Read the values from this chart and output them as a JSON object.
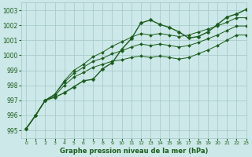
{
  "title": "Graphe pression niveau de la mer (hPa)",
  "bg_color": "#cce8e8",
  "grid_color": "#aacccc",
  "line_color": "#1a5c1a",
  "xlim": [
    -0.5,
    23
  ],
  "ylim": [
    994.5,
    1003.5
  ],
  "yticks": [
    995,
    996,
    997,
    998,
    999,
    1000,
    1001,
    1002,
    1003
  ],
  "xticks": [
    0,
    1,
    2,
    3,
    4,
    5,
    6,
    7,
    8,
    9,
    10,
    11,
    12,
    13,
    14,
    15,
    16,
    17,
    18,
    19,
    20,
    21,
    22,
    23
  ],
  "series": [
    {
      "x": [
        0,
        1,
        2,
        3,
        4,
        5,
        6,
        7,
        8,
        9,
        10,
        11,
        12,
        13,
        14,
        15,
        16,
        17,
        18,
        19,
        20,
        21,
        22,
        23
      ],
      "y": [
        995.1,
        996.0,
        997.0,
        997.2,
        997.5,
        997.9,
        998.3,
        998.4,
        999.1,
        999.5,
        1000.4,
        1001.1,
        1002.15,
        1002.35,
        1002.05,
        1001.85,
        1001.55,
        1001.15,
        1001.25,
        1001.55,
        1002.05,
        1002.55,
        1002.75,
        1003.05
      ],
      "marker": "D",
      "markersize": 2.5,
      "linewidth": 1.0,
      "zorder": 5
    },
    {
      "x": [
        0,
        1,
        2,
        3,
        4,
        5,
        6,
        7,
        8,
        9,
        10,
        11,
        12,
        13,
        14,
        15,
        16,
        17,
        18,
        19,
        20,
        21,
        22,
        23
      ],
      "y": [
        995.1,
        996.0,
        997.0,
        997.4,
        998.3,
        999.0,
        999.4,
        999.9,
        1000.2,
        1000.6,
        1000.9,
        1001.2,
        1001.45,
        1001.35,
        1001.45,
        1001.35,
        1001.25,
        1001.35,
        1001.55,
        1001.75,
        1001.95,
        1002.2,
        1002.5,
        1002.5
      ],
      "marker": "D",
      "markersize": 2.0,
      "linewidth": 0.7,
      "zorder": 4
    },
    {
      "x": [
        0,
        1,
        2,
        3,
        4,
        5,
        6,
        7,
        8,
        9,
        10,
        11,
        12,
        13,
        14,
        15,
        16,
        17,
        18,
        19,
        20,
        21,
        22,
        23
      ],
      "y": [
        995.1,
        996.0,
        997.0,
        997.4,
        998.2,
        998.8,
        999.2,
        999.6,
        999.8,
        1000.1,
        1000.3,
        1000.55,
        1000.75,
        1000.65,
        1000.75,
        1000.65,
        1000.55,
        1000.65,
        1000.85,
        1001.1,
        1001.35,
        1001.65,
        1001.95,
        1001.95
      ],
      "marker": "D",
      "markersize": 2.0,
      "linewidth": 0.7,
      "zorder": 4
    },
    {
      "x": [
        0,
        1,
        2,
        3,
        4,
        5,
        6,
        7,
        8,
        9,
        10,
        11,
        12,
        13,
        14,
        15,
        16,
        17,
        18,
        19,
        20,
        21,
        22,
        23
      ],
      "y": [
        995.1,
        996.0,
        997.0,
        997.3,
        998.0,
        998.55,
        998.85,
        999.2,
        999.4,
        999.6,
        999.7,
        999.85,
        999.95,
        999.85,
        999.95,
        999.85,
        999.75,
        999.85,
        1000.1,
        1000.35,
        1000.65,
        1001.0,
        1001.35,
        1001.35
      ],
      "marker": "D",
      "markersize": 2.0,
      "linewidth": 0.7,
      "zorder": 4
    }
  ]
}
